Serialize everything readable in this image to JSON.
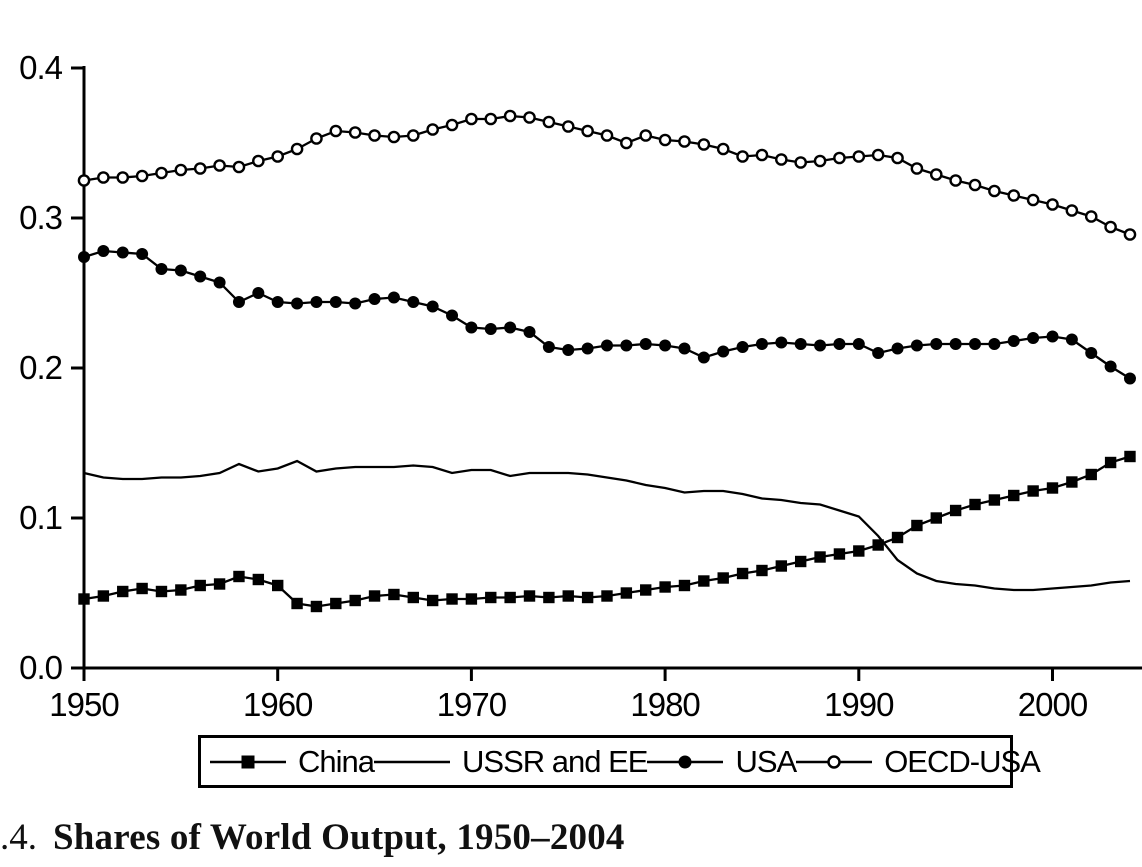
{
  "figure": {
    "caption_number": ".4.",
    "caption_title": "Shares of World Output, 1950–2004"
  },
  "axes": {
    "y_ticks": [
      "0.0",
      "0.1",
      "0.2",
      "0.3",
      "0.4"
    ],
    "x_ticks": [
      "1950",
      "1960",
      "1970",
      "1980",
      "1990",
      "2000"
    ]
  },
  "legend": {
    "items": [
      {
        "label": "China",
        "marker": "filled-square"
      },
      {
        "label": "USSR and EE",
        "marker": "none"
      },
      {
        "label": "USA",
        "marker": "filled-circle"
      },
      {
        "label": "OECD-USA",
        "marker": "open-circle"
      }
    ]
  },
  "colors": {
    "ink": "#000000",
    "background": "#ffffff"
  },
  "chart_data": {
    "type": "line",
    "title": "Shares of World Output, 1950–2004",
    "xlabel": "",
    "ylabel": "",
    "grid": false,
    "legend_position": "bottom",
    "ylim": [
      0.0,
      0.4
    ],
    "xlim": [
      1950,
      2004
    ],
    "x": [
      1950,
      1951,
      1952,
      1953,
      1954,
      1955,
      1956,
      1957,
      1958,
      1959,
      1960,
      1961,
      1962,
      1963,
      1964,
      1965,
      1966,
      1967,
      1968,
      1969,
      1970,
      1971,
      1972,
      1973,
      1974,
      1975,
      1976,
      1977,
      1978,
      1979,
      1980,
      1981,
      1982,
      1983,
      1984,
      1985,
      1986,
      1987,
      1988,
      1989,
      1990,
      1991,
      1992,
      1993,
      1994,
      1995,
      1996,
      1997,
      1998,
      1999,
      2000,
      2001,
      2002,
      2003,
      2004
    ],
    "series": [
      {
        "name": "China",
        "marker": "filled-square",
        "values": [
          0.046,
          0.048,
          0.051,
          0.053,
          0.051,
          0.052,
          0.055,
          0.056,
          0.061,
          0.059,
          0.055,
          0.043,
          0.041,
          0.043,
          0.045,
          0.048,
          0.049,
          0.047,
          0.045,
          0.046,
          0.046,
          0.047,
          0.047,
          0.048,
          0.047,
          0.048,
          0.047,
          0.048,
          0.05,
          0.052,
          0.054,
          0.055,
          0.058,
          0.06,
          0.063,
          0.065,
          0.068,
          0.071,
          0.074,
          0.076,
          0.078,
          0.082,
          0.087,
          0.095,
          0.1,
          0.105,
          0.109,
          0.112,
          0.115,
          0.118,
          0.12,
          0.124,
          0.129,
          0.137,
          0.141
        ]
      },
      {
        "name": "USSR and EE",
        "marker": "none",
        "values": [
          0.13,
          0.127,
          0.126,
          0.126,
          0.127,
          0.127,
          0.128,
          0.13,
          0.136,
          0.131,
          0.133,
          0.138,
          0.131,
          0.133,
          0.134,
          0.134,
          0.134,
          0.135,
          0.134,
          0.13,
          0.132,
          0.132,
          0.128,
          0.13,
          0.13,
          0.13,
          0.129,
          0.127,
          0.125,
          0.122,
          0.12,
          0.117,
          0.118,
          0.118,
          0.116,
          0.113,
          0.112,
          0.11,
          0.109,
          0.105,
          0.101,
          0.088,
          0.072,
          0.063,
          0.058,
          0.056,
          0.055,
          0.053,
          0.052,
          0.052,
          0.053,
          0.054,
          0.055,
          0.057,
          0.058
        ]
      },
      {
        "name": "USA",
        "marker": "filled-circle",
        "values": [
          0.274,
          0.278,
          0.277,
          0.276,
          0.266,
          0.265,
          0.261,
          0.257,
          0.244,
          0.25,
          0.244,
          0.243,
          0.244,
          0.244,
          0.243,
          0.246,
          0.247,
          0.244,
          0.241,
          0.235,
          0.227,
          0.226,
          0.227,
          0.224,
          0.214,
          0.212,
          0.213,
          0.215,
          0.215,
          0.216,
          0.215,
          0.213,
          0.207,
          0.211,
          0.214,
          0.216,
          0.217,
          0.216,
          0.215,
          0.216,
          0.216,
          0.21,
          0.213,
          0.215,
          0.216,
          0.216,
          0.216,
          0.216,
          0.218,
          0.22,
          0.221,
          0.219,
          0.21,
          0.201,
          0.193
        ]
      },
      {
        "name": "OECD-USA",
        "marker": "open-circle",
        "values": [
          0.325,
          0.327,
          0.327,
          0.328,
          0.33,
          0.332,
          0.333,
          0.335,
          0.334,
          0.338,
          0.341,
          0.346,
          0.353,
          0.358,
          0.357,
          0.355,
          0.354,
          0.355,
          0.359,
          0.362,
          0.366,
          0.366,
          0.368,
          0.367,
          0.364,
          0.361,
          0.358,
          0.355,
          0.35,
          0.355,
          0.352,
          0.351,
          0.349,
          0.346,
          0.341,
          0.342,
          0.339,
          0.337,
          0.338,
          0.34,
          0.341,
          0.342,
          0.34,
          0.333,
          0.329,
          0.325,
          0.322,
          0.318,
          0.315,
          0.312,
          0.309,
          0.305,
          0.301,
          0.294,
          0.289
        ]
      }
    ]
  }
}
